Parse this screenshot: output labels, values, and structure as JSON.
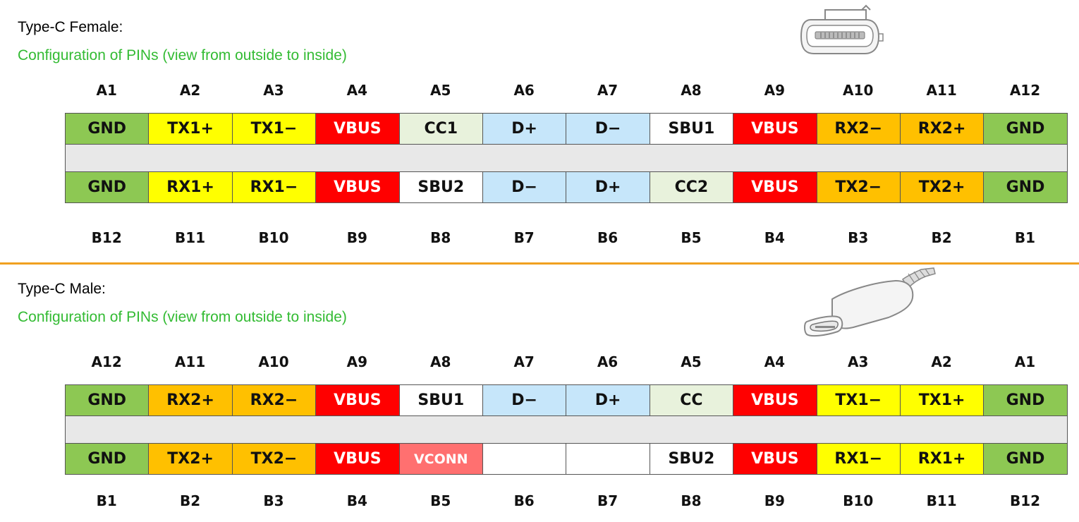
{
  "colors": {
    "GND": "#8dc853",
    "yellow": "#ffff00",
    "VBUS": "#ff0000",
    "CC": "#e8f2dc",
    "data": "#c6e6fa",
    "white": "#ffffff",
    "orange": "#ffc000",
    "VCONN": "#ff7070",
    "spacer": "#e8e8e8",
    "divider": "#f0a020",
    "subtitle": "#33bb33"
  },
  "female": {
    "title": "Type-C Female:",
    "subtitle": "Configuration of PINs (view from outside to inside)",
    "illustration_icon": "usb-c-receptacle-icon",
    "top_labels": [
      "A1",
      "A2",
      "A3",
      "A4",
      "A5",
      "A6",
      "A7",
      "A8",
      "A9",
      "A10",
      "A11",
      "A12"
    ],
    "top_row": [
      {
        "text": "GND",
        "color": "GND"
      },
      {
        "text": "TX1+",
        "color": "yellow"
      },
      {
        "text": "TX1−",
        "color": "yellow"
      },
      {
        "text": "VBUS",
        "color": "VBUS"
      },
      {
        "text": "CC1",
        "color": "CC"
      },
      {
        "text": "D+",
        "color": "data"
      },
      {
        "text": "D−",
        "color": "data"
      },
      {
        "text": "SBU1",
        "color": "white"
      },
      {
        "text": "VBUS",
        "color": "VBUS"
      },
      {
        "text": "RX2−",
        "color": "orange"
      },
      {
        "text": "RX2+",
        "color": "orange"
      },
      {
        "text": "GND",
        "color": "GND"
      }
    ],
    "bottom_row": [
      {
        "text": "GND",
        "color": "GND"
      },
      {
        "text": "RX1+",
        "color": "yellow"
      },
      {
        "text": "RX1−",
        "color": "yellow"
      },
      {
        "text": "VBUS",
        "color": "VBUS"
      },
      {
        "text": "SBU2",
        "color": "white"
      },
      {
        "text": "D−",
        "color": "data"
      },
      {
        "text": "D+",
        "color": "data"
      },
      {
        "text": "CC2",
        "color": "CC"
      },
      {
        "text": "VBUS",
        "color": "VBUS"
      },
      {
        "text": "TX2−",
        "color": "orange"
      },
      {
        "text": "TX2+",
        "color": "orange"
      },
      {
        "text": "GND",
        "color": "GND"
      }
    ],
    "bottom_labels": [
      "B12",
      "B11",
      "B10",
      "B9",
      "B8",
      "B7",
      "B6",
      "B5",
      "B4",
      "B3",
      "B2",
      "B1"
    ]
  },
  "male": {
    "title": "Type-C Male:",
    "subtitle": "Configuration of PINs (view from outside to inside)",
    "illustration_icon": "usb-c-plug-icon",
    "top_labels": [
      "A12",
      "A11",
      "A10",
      "A9",
      "A8",
      "A7",
      "A6",
      "A5",
      "A4",
      "A3",
      "A2",
      "A1"
    ],
    "top_row": [
      {
        "text": "GND",
        "color": "GND"
      },
      {
        "text": "RX2+",
        "color": "orange"
      },
      {
        "text": "RX2−",
        "color": "orange"
      },
      {
        "text": "VBUS",
        "color": "VBUS"
      },
      {
        "text": "SBU1",
        "color": "white"
      },
      {
        "text": "D−",
        "color": "data"
      },
      {
        "text": "D+",
        "color": "data"
      },
      {
        "text": "CC",
        "color": "CC"
      },
      {
        "text": "VBUS",
        "color": "VBUS"
      },
      {
        "text": "TX1−",
        "color": "yellow"
      },
      {
        "text": "TX1+",
        "color": "yellow"
      },
      {
        "text": "GND",
        "color": "GND"
      }
    ],
    "bottom_row": [
      {
        "text": "GND",
        "color": "GND"
      },
      {
        "text": "TX2+",
        "color": "orange"
      },
      {
        "text": "TX2−",
        "color": "orange"
      },
      {
        "text": "VBUS",
        "color": "VBUS"
      },
      {
        "text": "VCONN",
        "color": "VCONN"
      },
      {
        "text": "",
        "color": "white"
      },
      {
        "text": "",
        "color": "white"
      },
      {
        "text": "SBU2",
        "color": "white"
      },
      {
        "text": "VBUS",
        "color": "VBUS"
      },
      {
        "text": "RX1−",
        "color": "yellow"
      },
      {
        "text": "RX1+",
        "color": "yellow"
      },
      {
        "text": "GND",
        "color": "GND"
      }
    ],
    "bottom_labels": [
      "B1",
      "B2",
      "B3",
      "B4",
      "B5",
      "B6",
      "B7",
      "B8",
      "B9",
      "B10",
      "B11",
      "B12"
    ]
  }
}
